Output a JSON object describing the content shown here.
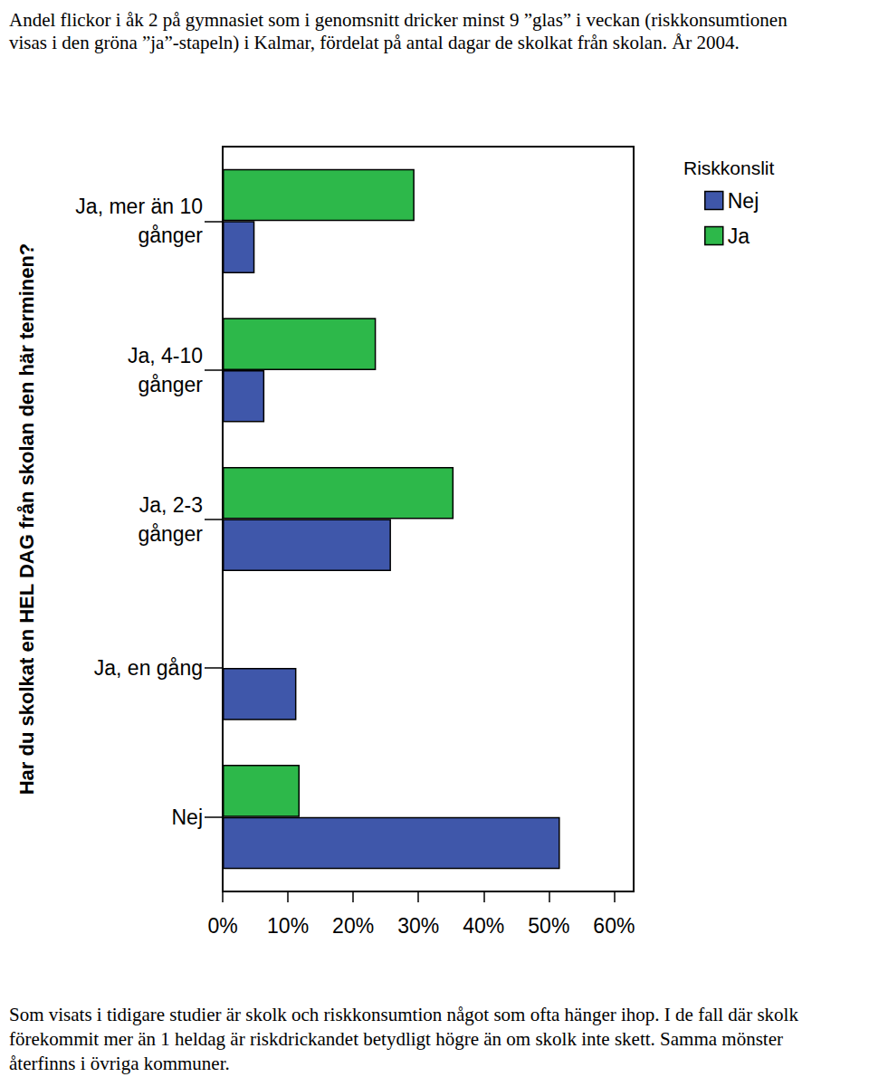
{
  "chart_data": {
    "type": "bar",
    "title": "Andel flickor i åk 2 på gymnasiet som i genomsnitt dricker minst 9 ”glas” i veckan (riskkonsumtionen visas i den gröna ”ja”-stapeln) i Kalmar, fördelat på antal dagar de skolkat från skolan. År 2004.",
    "annotations": [
      "Som visats i tidigare studier är skolk och riskkonsumtion något som ofta hänger ihop. I de fall där skolk förekommit mer än 1 heldag är riskdrickandet betydligt högre än om skolk inte skett. Samma mönster återfinns i övriga kommuner."
    ],
    "ylabel": "Har du skolkat en HEL DAG från skolan den här terminen?",
    "legend_title": "Riskkonslit",
    "orientation": "horizontal",
    "legend": "upper right",
    "grid": false,
    "data_labels": false,
    "categories": [
      "Ja, mer än 10\ngånger",
      "Ja, 4-10\ngånger",
      "Ja, 2-3\ngånger",
      "Ja, en gång",
      "Nej"
    ],
    "series": [
      {
        "name": "Nej",
        "color": "#3f57aa",
        "values": [
          4.9,
          6.4,
          25.8,
          11.3,
          51.7
        ]
      },
      {
        "name": "Ja",
        "color": "#2db84a",
        "values": [
          29.4,
          23.5,
          35.4,
          null,
          11.8
        ]
      }
    ],
    "xlim": [
      0,
      63
    ],
    "xticks": [
      {
        "value": 0,
        "label": "0%"
      },
      {
        "value": 10,
        "label": "10%"
      },
      {
        "value": 20,
        "label": "20%"
      },
      {
        "value": 30,
        "label": "30%"
      },
      {
        "value": 40,
        "label": "40%"
      },
      {
        "value": 50,
        "label": "50%"
      },
      {
        "value": 60,
        "label": "60%"
      }
    ]
  }
}
